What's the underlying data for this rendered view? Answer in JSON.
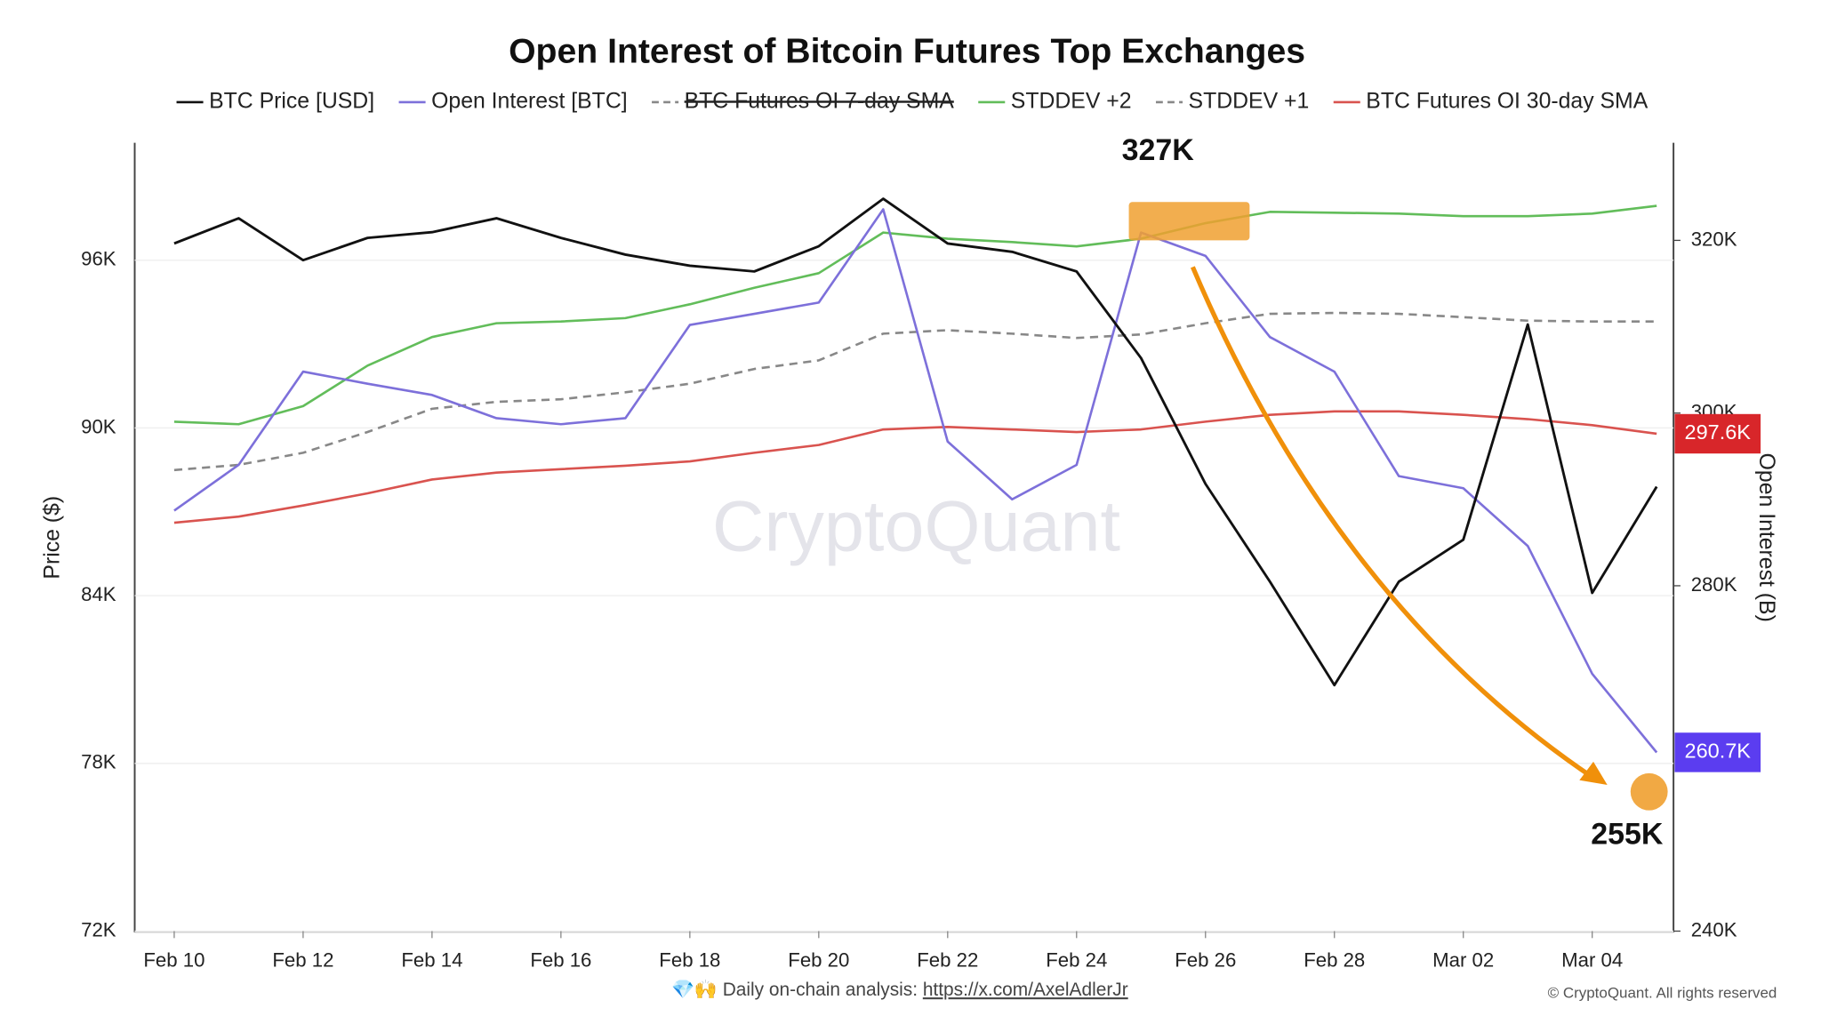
{
  "chart_data": {
    "type": "line",
    "title": "Open Interest of Bitcoin Futures Top Exchanges",
    "x": [
      "Feb 10",
      "Feb 11",
      "Feb 12",
      "Feb 13",
      "Feb 14",
      "Feb 15",
      "Feb 16",
      "Feb 17",
      "Feb 18",
      "Feb 19",
      "Feb 20",
      "Feb 21",
      "Feb 22",
      "Feb 23",
      "Feb 24",
      "Feb 25",
      "Feb 26",
      "Feb 27",
      "Feb 28",
      "Mar 01",
      "Mar 02",
      "Mar 03",
      "Mar 04",
      "Mar 05"
    ],
    "y_label": "Price ($)",
    "y2_label": "Open Interest (B)",
    "ylim": [
      72000,
      100200
    ],
    "yticks": [
      {
        "value": 72000,
        "label": "72K"
      },
      {
        "value": 78000,
        "label": "78K"
      },
      {
        "value": 84000,
        "label": "84K"
      },
      {
        "value": 90000,
        "label": "90K"
      },
      {
        "value": 96000,
        "label": "96K"
      }
    ],
    "y2lim": [
      240000,
      331300
    ],
    "y2ticks": [
      {
        "value": 240000,
        "label": "240K"
      },
      {
        "value": 280000,
        "label": "280K"
      },
      {
        "value": 300000,
        "label": "300K"
      },
      {
        "value": 320000,
        "label": "320K"
      }
    ],
    "series": [
      {
        "name": "BTC Price [USD]",
        "color": "#111111",
        "axis": "y",
        "values": [
          96600,
          97500,
          96000,
          96800,
          97000,
          97500,
          96800,
          96200,
          95800,
          95600,
          96500,
          98200,
          96600,
          96300,
          95600,
          92500,
          88000,
          84500,
          80800,
          84500,
          86000,
          93700,
          84100,
          87900
        ]
      },
      {
        "name": "Open Interest [BTC]",
        "color": "#7d70da",
        "axis": "y2",
        "last_label": "260.7K",
        "values": [
          288700,
          294000,
          304800,
          303400,
          302100,
          299400,
          298700,
          299400,
          310200,
          311500,
          312800,
          323600,
          296700,
          290000,
          294000,
          320900,
          318200,
          308800,
          304800,
          292700,
          291300,
          284600,
          269800,
          260700
        ]
      },
      {
        "name": "BTC Futures OI 7-day SMA",
        "color": "#888888",
        "axis": "y2",
        "dash": true,
        "hidden": true
      },
      {
        "name": "STDDEV +2",
        "color": "#62bd5a",
        "axis": "y2",
        "values": [
          299000,
          298700,
          300800,
          305500,
          308800,
          310400,
          310600,
          311000,
          312600,
          314500,
          316200,
          320900,
          320200,
          319800,
          319300,
          320200,
          322000,
          323300,
          323200,
          323100,
          322800,
          322800,
          323100,
          324000
        ]
      },
      {
        "name": "STDDEV +1",
        "color": "#888888",
        "axis": "y2",
        "dash": true,
        "values": [
          293400,
          294000,
          295400,
          297800,
          300500,
          301300,
          301600,
          302400,
          303400,
          305100,
          306100,
          309200,
          309600,
          309200,
          308700,
          309100,
          310400,
          311500,
          311600,
          311500,
          311100,
          310700,
          310600,
          310600
        ]
      },
      {
        "name": "BTC Futures OI 30-day SMA",
        "color": "#d9534f",
        "axis": "y2",
        "last_label": "297.6K",
        "values": [
          287300,
          288000,
          289300,
          290700,
          292300,
          293100,
          293500,
          293900,
          294400,
          295400,
          296300,
          298100,
          298400,
          298100,
          297800,
          298100,
          299000,
          299800,
          300200,
          300200,
          299800,
          299300,
          298600,
          297600
        ]
      }
    ],
    "annotations": [
      {
        "text": "327K"
      },
      {
        "text": "255K"
      }
    ],
    "watermark": "CryptoQuant",
    "footer": {
      "text": "💎🙌 Daily on-chain analysis: ",
      "link": "https://x.com/AxelAdlerJr",
      "copyright": "© CryptoQuant. All rights reserved"
    }
  }
}
